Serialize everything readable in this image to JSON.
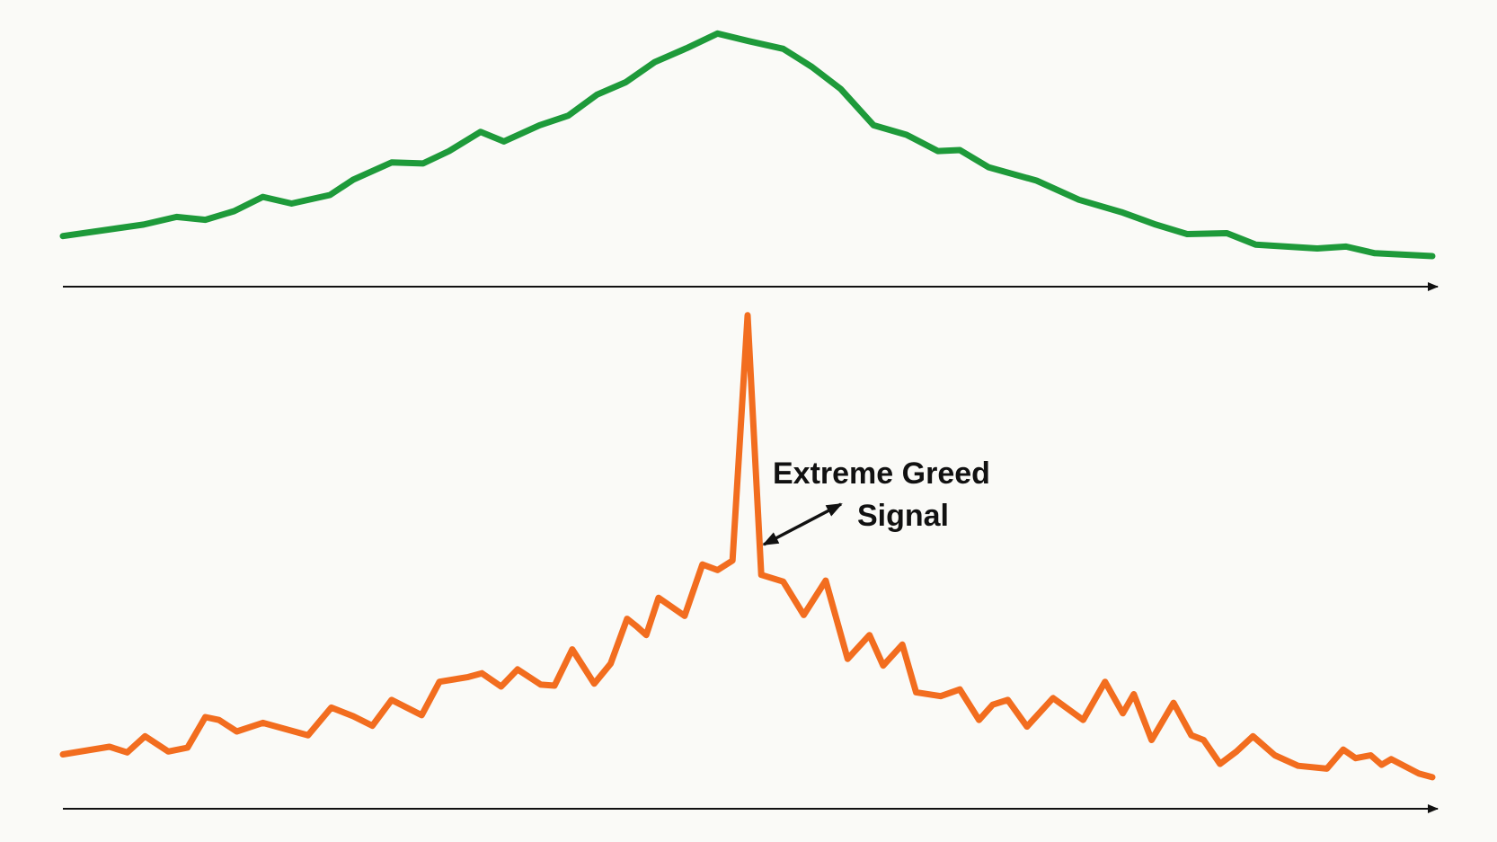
{
  "chart_data": [
    {
      "type": "line",
      "xlim": [
        0,
        100
      ],
      "ylim": [
        0,
        270
      ],
      "series": [
        {
          "color": "#1e9a3a",
          "x": [
            0,
            5.9,
            8.3,
            10.4,
            12.5,
            14.6,
            16.7,
            19.5,
            21.2,
            24,
            26.3,
            28.2,
            30.5,
            32.2,
            34.8,
            36.9,
            39,
            41.1,
            43.2,
            45.6,
            47.8,
            50.1,
            52.6,
            54.7,
            56.8,
            59.2,
            61.6,
            63.9,
            65.5,
            67.6,
            71.1,
            74.2,
            77.3,
            79.8,
            82.1,
            85,
            87.1,
            91.6,
            93.7,
            95.8,
            100
          ],
          "values": [
            53,
            65,
            73,
            70,
            79,
            94,
            87,
            96,
            112,
            130,
            129,
            142,
            162,
            152,
            169,
            179,
            201,
            214,
            235,
            250,
            265,
            257,
            249,
            230,
            207,
            169,
            159,
            142,
            143,
            125,
            111,
            91,
            78,
            65,
            55,
            56,
            44,
            40,
            42,
            35,
            32
          ]
        }
      ]
    },
    {
      "type": "line",
      "xlim": [
        0,
        100
      ],
      "ylim": [
        0,
        530
      ],
      "annotation": [
        "Extreme Greed",
        "Signal"
      ],
      "series": [
        {
          "color": "#f26d1f",
          "x": [
            0,
            3.4,
            4.7,
            6,
            7.7,
            9.1,
            10.4,
            11.4,
            12.7,
            14.6,
            17.9,
            19.6,
            21.2,
            22.6,
            24,
            26.2,
            27.5,
            29.6,
            30.6,
            32,
            33.2,
            34.9,
            35.9,
            37.2,
            38.8,
            40,
            41.2,
            41.9,
            42.6,
            43.5,
            45.4,
            46.7,
            47.8,
            48.9,
            50,
            51,
            52.6,
            54.1,
            55.7,
            57.3,
            58.9,
            59.9,
            61.3,
            62.3,
            64.1,
            65.5,
            66.9,
            67.9,
            69,
            70.4,
            72.3,
            74.5,
            76.1,
            77.4,
            78.2,
            79.5,
            81.1,
            82.4,
            83.3,
            84.5,
            85.7,
            86.9,
            88.5,
            90.2,
            92.3,
            93.5,
            94.4,
            95.5,
            96.3,
            97,
            99,
            100
          ],
          "values": [
            57,
            65,
            59,
            76,
            60,
            64,
            96,
            93,
            81,
            90,
            77,
            106,
            97,
            87,
            114,
            98,
            133,
            138,
            142,
            128,
            146,
            130,
            129,
            167,
            131,
            152,
            199,
            191,
            182,
            221,
            202,
            256,
            250,
            260,
            517,
            245,
            238,
            203,
            239,
            157,
            182,
            150,
            172,
            122,
            118,
            125,
            93,
            109,
            114,
            86,
            116,
            93,
            133,
            100,
            120,
            72,
            111,
            77,
            72,
            47,
            60,
            76,
            56,
            45,
            42,
            62,
            53,
            56,
            46,
            52,
            37,
            33
          ]
        }
      ]
    }
  ]
}
